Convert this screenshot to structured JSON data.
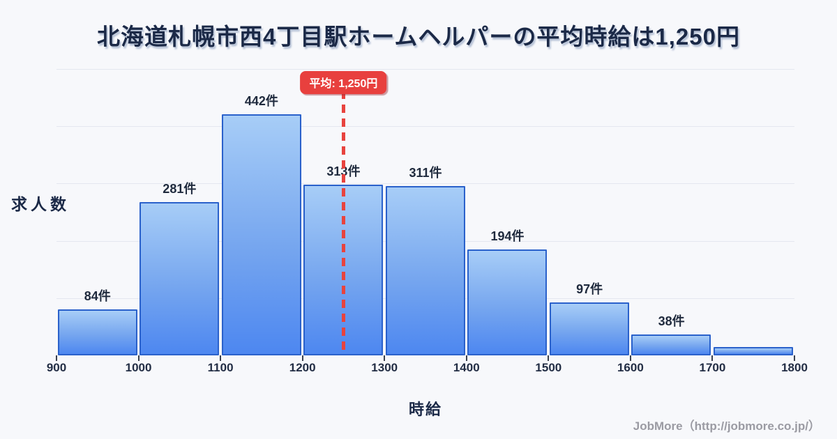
{
  "title": "北海道札幌市西4丁目駅ホームヘルパーの平均時給は1,250円",
  "footer": {
    "credit": "JobMore（http://jobmore.co.jp/）"
  },
  "colors": {
    "background": "#f7f8fb",
    "text_primary": "#1b2947",
    "bar_fill_top": "#a7cdf7",
    "bar_fill_bottom": "#4d87f0",
    "bar_border": "#2a61cb",
    "gridline": "#e4e7ef",
    "average_red": "#e8403e",
    "footer_gray": "#9b9ba3"
  },
  "chart_data": {
    "type": "bar",
    "title": "北海道札幌市西4丁目駅ホームヘルパーの平均時給は1,250円",
    "xlabel": "時給",
    "ylabel": "求人数",
    "x_ticks": [
      "900",
      "1000",
      "1100",
      "1200",
      "1300",
      "1400",
      "1500",
      "1600",
      "1700",
      "1800"
    ],
    "x_range": [
      900,
      1800
    ],
    "bin_width": 100,
    "grid": true,
    "gridline_count": 5,
    "y_max": 525,
    "bins": [
      {
        "range": [
          900,
          1000
        ],
        "value": 84,
        "label": "84件"
      },
      {
        "range": [
          1000,
          1100
        ],
        "value": 281,
        "label": "281件"
      },
      {
        "range": [
          1100,
          1200
        ],
        "value": 442,
        "label": "442件"
      },
      {
        "range": [
          1200,
          1300
        ],
        "value": 313,
        "label": "313件"
      },
      {
        "range": [
          1300,
          1400
        ],
        "value": 311,
        "label": "311件"
      },
      {
        "range": [
          1400,
          1500
        ],
        "value": 194,
        "label": "194件"
      },
      {
        "range": [
          1500,
          1600
        ],
        "value": 97,
        "label": "97件"
      },
      {
        "range": [
          1600,
          1700
        ],
        "value": 38,
        "label": "38件"
      },
      {
        "range": [
          1700,
          1800
        ],
        "value": 15,
        "label": ""
      }
    ],
    "average_line": {
      "value": 1250,
      "badge_label": "平均: 1,250円"
    }
  }
}
